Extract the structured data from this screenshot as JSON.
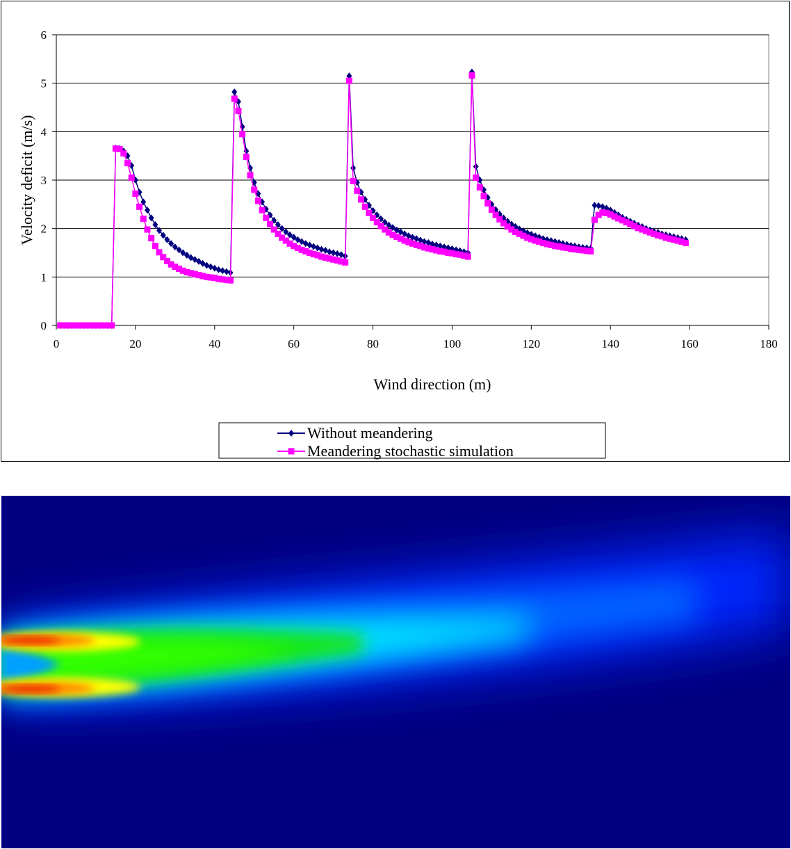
{
  "chart_data": {
    "type": "line",
    "title": "",
    "xlabel": "Wind direction (m)",
    "ylabel": "Velocity deficit (m/s)",
    "xlim": [
      0,
      180
    ],
    "ylim": [
      0,
      6
    ],
    "xticks": [
      0,
      20,
      40,
      60,
      80,
      100,
      120,
      140,
      160,
      180
    ],
    "yticks": [
      0,
      1,
      2,
      3,
      4,
      5,
      6
    ],
    "grid": "horizontal",
    "legend_position": "bottom",
    "series": [
      {
        "name": "Without meandering",
        "color": "#000080",
        "marker": "diamond",
        "points": [
          [
            1,
            0
          ],
          [
            2,
            0
          ],
          [
            3,
            0
          ],
          [
            4,
            0
          ],
          [
            5,
            0
          ],
          [
            6,
            0
          ],
          [
            7,
            0
          ],
          [
            8,
            0
          ],
          [
            9,
            0
          ],
          [
            10,
            0
          ],
          [
            11,
            0
          ],
          [
            12,
            0
          ],
          [
            13,
            0
          ],
          [
            14,
            0
          ],
          [
            15,
            3.66
          ],
          [
            16,
            3.65
          ],
          [
            17,
            3.6
          ],
          [
            18,
            3.5
          ],
          [
            19,
            3.3
          ],
          [
            20,
            3.0
          ],
          [
            21,
            2.75
          ],
          [
            22,
            2.55
          ],
          [
            23,
            2.38
          ],
          [
            24,
            2.22
          ],
          [
            25,
            2.08
          ],
          [
            26,
            1.96
          ],
          [
            27,
            1.86
          ],
          [
            28,
            1.77
          ],
          [
            29,
            1.69
          ],
          [
            30,
            1.62
          ],
          [
            31,
            1.56
          ],
          [
            32,
            1.5
          ],
          [
            33,
            1.45
          ],
          [
            34,
            1.4
          ],
          [
            35,
            1.36
          ],
          [
            36,
            1.32
          ],
          [
            37,
            1.28
          ],
          [
            38,
            1.24
          ],
          [
            39,
            1.21
          ],
          [
            40,
            1.18
          ],
          [
            41,
            1.15
          ],
          [
            42,
            1.13
          ],
          [
            43,
            1.11
          ],
          [
            44,
            1.09
          ],
          [
            45,
            4.82
          ],
          [
            46,
            4.62
          ],
          [
            47,
            4.1
          ],
          [
            48,
            3.6
          ],
          [
            49,
            3.25
          ],
          [
            50,
            2.95
          ],
          [
            51,
            2.72
          ],
          [
            52,
            2.55
          ],
          [
            53,
            2.4
          ],
          [
            54,
            2.28
          ],
          [
            55,
            2.17
          ],
          [
            56,
            2.08
          ],
          [
            57,
            2.0
          ],
          [
            58,
            1.93
          ],
          [
            59,
            1.87
          ],
          [
            60,
            1.82
          ],
          [
            61,
            1.77
          ],
          [
            62,
            1.73
          ],
          [
            63,
            1.69
          ],
          [
            64,
            1.66
          ],
          [
            65,
            1.63
          ],
          [
            66,
            1.6
          ],
          [
            67,
            1.57
          ],
          [
            68,
            1.55
          ],
          [
            69,
            1.52
          ],
          [
            70,
            1.5
          ],
          [
            71,
            1.48
          ],
          [
            72,
            1.46
          ],
          [
            73,
            1.43
          ],
          [
            74,
            5.15
          ],
          [
            75,
            3.25
          ],
          [
            76,
            2.95
          ],
          [
            77,
            2.75
          ],
          [
            78,
            2.6
          ],
          [
            79,
            2.48
          ],
          [
            80,
            2.37
          ],
          [
            81,
            2.28
          ],
          [
            82,
            2.2
          ],
          [
            83,
            2.13
          ],
          [
            84,
            2.07
          ],
          [
            85,
            2.02
          ],
          [
            86,
            1.97
          ],
          [
            87,
            1.93
          ],
          [
            88,
            1.89
          ],
          [
            89,
            1.85
          ],
          [
            90,
            1.82
          ],
          [
            91,
            1.79
          ],
          [
            92,
            1.76
          ],
          [
            93,
            1.73
          ],
          [
            94,
            1.71
          ],
          [
            95,
            1.68
          ],
          [
            96,
            1.66
          ],
          [
            97,
            1.64
          ],
          [
            98,
            1.62
          ],
          [
            99,
            1.6
          ],
          [
            100,
            1.58
          ],
          [
            101,
            1.56
          ],
          [
            102,
            1.54
          ],
          [
            103,
            1.52
          ],
          [
            104,
            1.5
          ],
          [
            105,
            5.23
          ],
          [
            106,
            3.28
          ],
          [
            107,
            3.0
          ],
          [
            108,
            2.8
          ],
          [
            109,
            2.64
          ],
          [
            110,
            2.5
          ],
          [
            111,
            2.39
          ],
          [
            112,
            2.3
          ],
          [
            113,
            2.22
          ],
          [
            114,
            2.15
          ],
          [
            115,
            2.09
          ],
          [
            116,
            2.04
          ],
          [
            117,
            1.99
          ],
          [
            118,
            1.95
          ],
          [
            119,
            1.91
          ],
          [
            120,
            1.88
          ],
          [
            121,
            1.85
          ],
          [
            122,
            1.82
          ],
          [
            123,
            1.79
          ],
          [
            124,
            1.77
          ],
          [
            125,
            1.75
          ],
          [
            126,
            1.73
          ],
          [
            127,
            1.71
          ],
          [
            128,
            1.69
          ],
          [
            129,
            1.67
          ],
          [
            130,
            1.65
          ],
          [
            131,
            1.64
          ],
          [
            132,
            1.62
          ],
          [
            133,
            1.61
          ],
          [
            134,
            1.6
          ],
          [
            135,
            1.59
          ],
          [
            136,
            2.48
          ],
          [
            137,
            2.47
          ],
          [
            138,
            2.45
          ],
          [
            139,
            2.42
          ],
          [
            140,
            2.38
          ],
          [
            141,
            2.33
          ],
          [
            142,
            2.28
          ],
          [
            143,
            2.23
          ],
          [
            144,
            2.19
          ],
          [
            145,
            2.15
          ],
          [
            146,
            2.11
          ],
          [
            147,
            2.07
          ],
          [
            148,
            2.04
          ],
          [
            149,
            2.0
          ],
          [
            150,
            1.97
          ],
          [
            151,
            1.94
          ],
          [
            152,
            1.92
          ],
          [
            153,
            1.89
          ],
          [
            154,
            1.87
          ],
          [
            155,
            1.85
          ],
          [
            156,
            1.83
          ],
          [
            157,
            1.81
          ],
          [
            158,
            1.79
          ],
          [
            159,
            1.77
          ]
        ]
      },
      {
        "name": "Meandering stochastic simulation",
        "color": "#ff00ff",
        "marker": "square",
        "points": [
          [
            1,
            0
          ],
          [
            2,
            0
          ],
          [
            3,
            0
          ],
          [
            4,
            0
          ],
          [
            5,
            0
          ],
          [
            6,
            0
          ],
          [
            7,
            0
          ],
          [
            8,
            0
          ],
          [
            9,
            0
          ],
          [
            10,
            0
          ],
          [
            11,
            0
          ],
          [
            12,
            0
          ],
          [
            13,
            0
          ],
          [
            14,
            0
          ],
          [
            15,
            3.65
          ],
          [
            16,
            3.64
          ],
          [
            17,
            3.55
          ],
          [
            18,
            3.35
          ],
          [
            19,
            3.05
          ],
          [
            20,
            2.72
          ],
          [
            21,
            2.45
          ],
          [
            22,
            2.2
          ],
          [
            23,
            1.98
          ],
          [
            24,
            1.8
          ],
          [
            25,
            1.64
          ],
          [
            26,
            1.51
          ],
          [
            27,
            1.41
          ],
          [
            28,
            1.33
          ],
          [
            29,
            1.26
          ],
          [
            30,
            1.21
          ],
          [
            31,
            1.17
          ],
          [
            32,
            1.13
          ],
          [
            33,
            1.1
          ],
          [
            34,
            1.08
          ],
          [
            35,
            1.06
          ],
          [
            36,
            1.04
          ],
          [
            37,
            1.02
          ],
          [
            38,
            1.0
          ],
          [
            39,
            0.99
          ],
          [
            40,
            0.98
          ],
          [
            41,
            0.96
          ],
          [
            42,
            0.95
          ],
          [
            43,
            0.94
          ],
          [
            44,
            0.93
          ],
          [
            45,
            4.68
          ],
          [
            46,
            4.43
          ],
          [
            47,
            3.95
          ],
          [
            48,
            3.48
          ],
          [
            49,
            3.1
          ],
          [
            50,
            2.8
          ],
          [
            51,
            2.57
          ],
          [
            52,
            2.38
          ],
          [
            53,
            2.22
          ],
          [
            54,
            2.09
          ],
          [
            55,
            1.98
          ],
          [
            56,
            1.89
          ],
          [
            57,
            1.81
          ],
          [
            58,
            1.75
          ],
          [
            59,
            1.69
          ],
          [
            60,
            1.64
          ],
          [
            61,
            1.6
          ],
          [
            62,
            1.56
          ],
          [
            63,
            1.53
          ],
          [
            64,
            1.5
          ],
          [
            65,
            1.47
          ],
          [
            66,
            1.45
          ],
          [
            67,
            1.42
          ],
          [
            68,
            1.4
          ],
          [
            69,
            1.38
          ],
          [
            70,
            1.36
          ],
          [
            71,
            1.34
          ],
          [
            72,
            1.32
          ],
          [
            73,
            1.3
          ],
          [
            74,
            5.05
          ],
          [
            75,
            2.98
          ],
          [
            76,
            2.78
          ],
          [
            77,
            2.6
          ],
          [
            78,
            2.45
          ],
          [
            79,
            2.32
          ],
          [
            80,
            2.22
          ],
          [
            81,
            2.13
          ],
          [
            82,
            2.05
          ],
          [
            83,
            1.98
          ],
          [
            84,
            1.92
          ],
          [
            85,
            1.87
          ],
          [
            86,
            1.83
          ],
          [
            87,
            1.79
          ],
          [
            88,
            1.75
          ],
          [
            89,
            1.72
          ],
          [
            90,
            1.69
          ],
          [
            91,
            1.66
          ],
          [
            92,
            1.64
          ],
          [
            93,
            1.61
          ],
          [
            94,
            1.59
          ],
          [
            95,
            1.57
          ],
          [
            96,
            1.55
          ],
          [
            97,
            1.53
          ],
          [
            98,
            1.52
          ],
          [
            99,
            1.5
          ],
          [
            100,
            1.49
          ],
          [
            101,
            1.47
          ],
          [
            102,
            1.46
          ],
          [
            103,
            1.44
          ],
          [
            104,
            1.42
          ],
          [
            105,
            5.16
          ],
          [
            106,
            3.05
          ],
          [
            107,
            2.85
          ],
          [
            108,
            2.67
          ],
          [
            109,
            2.52
          ],
          [
            110,
            2.39
          ],
          [
            111,
            2.28
          ],
          [
            112,
            2.19
          ],
          [
            113,
            2.11
          ],
          [
            114,
            2.04
          ],
          [
            115,
            1.98
          ],
          [
            116,
            1.93
          ],
          [
            117,
            1.89
          ],
          [
            118,
            1.85
          ],
          [
            119,
            1.81
          ],
          [
            120,
            1.78
          ],
          [
            121,
            1.75
          ],
          [
            122,
            1.73
          ],
          [
            123,
            1.7
          ],
          [
            124,
            1.68
          ],
          [
            125,
            1.66
          ],
          [
            126,
            1.64
          ],
          [
            127,
            1.63
          ],
          [
            128,
            1.61
          ],
          [
            129,
            1.6
          ],
          [
            130,
            1.58
          ],
          [
            131,
            1.57
          ],
          [
            132,
            1.56
          ],
          [
            133,
            1.55
          ],
          [
            134,
            1.54
          ],
          [
            135,
            1.53
          ],
          [
            136,
            2.18
          ],
          [
            137,
            2.28
          ],
          [
            138,
            2.33
          ],
          [
            139,
            2.32
          ],
          [
            140,
            2.29
          ],
          [
            141,
            2.25
          ],
          [
            142,
            2.21
          ],
          [
            143,
            2.17
          ],
          [
            144,
            2.13
          ],
          [
            145,
            2.09
          ],
          [
            146,
            2.05
          ],
          [
            147,
            2.01
          ],
          [
            148,
            1.98
          ],
          [
            149,
            1.95
          ],
          [
            150,
            1.92
          ],
          [
            151,
            1.89
          ],
          [
            152,
            1.86
          ],
          [
            153,
            1.84
          ],
          [
            154,
            1.81
          ],
          [
            155,
            1.79
          ],
          [
            156,
            1.77
          ],
          [
            157,
            1.75
          ],
          [
            158,
            1.73
          ],
          [
            159,
            1.7
          ]
        ]
      }
    ]
  },
  "heatmap": {
    "background": "#000080",
    "colormap": [
      "#000080",
      "#0000ff",
      "#00ffff",
      "#00ff00",
      "#ffff00",
      "#ff0000"
    ]
  }
}
